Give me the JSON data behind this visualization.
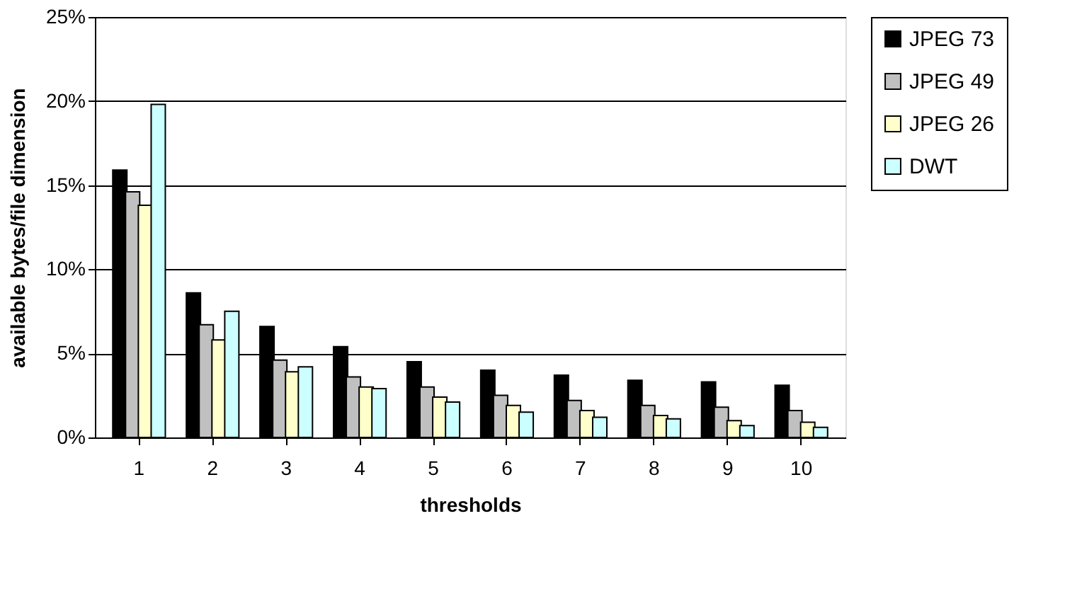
{
  "chart_data": {
    "type": "bar",
    "xlabel": "thresholds",
    "ylabel": "available bytes/file dimension",
    "categories": [
      "1",
      "2",
      "3",
      "4",
      "5",
      "6",
      "7",
      "8",
      "9",
      "10"
    ],
    "series": [
      {
        "name": "JPEG 73",
        "color": "#000000",
        "values": [
          15.9,
          8.6,
          6.6,
          5.4,
          4.5,
          4.0,
          3.7,
          3.4,
          3.3,
          3.1
        ]
      },
      {
        "name": "JPEG 49",
        "color": "#c0c0c0",
        "values": [
          14.6,
          6.7,
          4.6,
          3.6,
          3.0,
          2.5,
          2.2,
          1.9,
          1.8,
          1.6
        ]
      },
      {
        "name": "JPEG 26",
        "color": "#ffffcc",
        "values": [
          13.8,
          5.8,
          3.9,
          3.0,
          2.4,
          1.9,
          1.6,
          1.3,
          1.0,
          0.9
        ]
      },
      {
        "name": "DWT",
        "color": "#ccffff",
        "values": [
          19.8,
          7.5,
          4.2,
          2.9,
          2.1,
          1.5,
          1.2,
          1.1,
          0.7,
          0.6
        ]
      }
    ],
    "ylim": [
      0,
      25
    ],
    "yticks": [
      {
        "value": 0,
        "label": "0%"
      },
      {
        "value": 5,
        "label": "5%"
      },
      {
        "value": 10,
        "label": "10%"
      },
      {
        "value": 15,
        "label": "15%"
      },
      {
        "value": 20,
        "label": "20%"
      },
      {
        "value": 25,
        "label": "25%"
      }
    ],
    "grid": "y",
    "legend": "right"
  }
}
